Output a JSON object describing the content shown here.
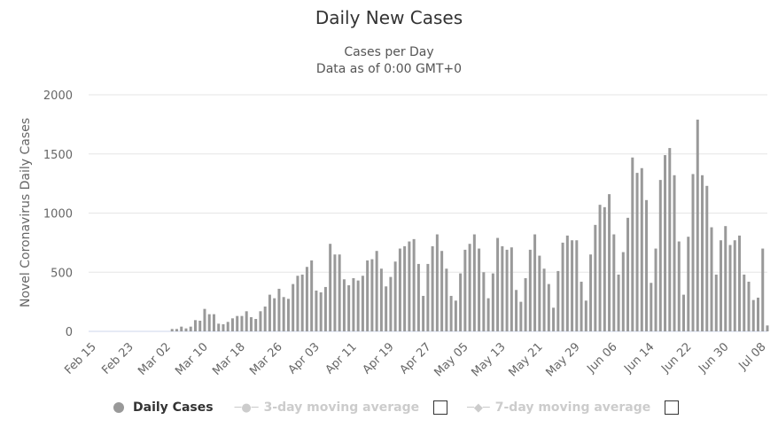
{
  "chart_data": {
    "type": "bar",
    "title": "Daily New Cases",
    "subtitle": "Cases per Day",
    "subtitle2": "Data as of 0:00 GMT+0",
    "xlabel": "",
    "ylabel": "Novel Coronavirus Daily Cases",
    "ylim": [
      0,
      2000
    ],
    "yticks": [
      0,
      500,
      1000,
      1500,
      2000
    ],
    "grid": true,
    "legend_position": "bottom",
    "bar_color": "#999999",
    "categories": [
      "Feb 15",
      "Feb 16",
      "Feb 17",
      "Feb 18",
      "Feb 19",
      "Feb 20",
      "Feb 21",
      "Feb 22",
      "Feb 23",
      "Feb 24",
      "Feb 25",
      "Feb 26",
      "Feb 27",
      "Feb 28",
      "Feb 29",
      "Mar 01",
      "Mar 02",
      "Mar 03",
      "Mar 04",
      "Mar 05",
      "Mar 06",
      "Mar 07",
      "Mar 08",
      "Mar 09",
      "Mar 10",
      "Mar 11",
      "Mar 12",
      "Mar 13",
      "Mar 14",
      "Mar 15",
      "Mar 16",
      "Mar 17",
      "Mar 18",
      "Mar 19",
      "Mar 20",
      "Mar 21",
      "Mar 22",
      "Mar 23",
      "Mar 24",
      "Mar 25",
      "Mar 26",
      "Mar 27",
      "Mar 28",
      "Mar 29",
      "Mar 30",
      "Mar 31",
      "Apr 01",
      "Apr 02",
      "Apr 03",
      "Apr 04",
      "Apr 05",
      "Apr 06",
      "Apr 07",
      "Apr 08",
      "Apr 09",
      "Apr 10",
      "Apr 11",
      "Apr 12",
      "Apr 13",
      "Apr 14",
      "Apr 15",
      "Apr 16",
      "Apr 17",
      "Apr 18",
      "Apr 19",
      "Apr 20",
      "Apr 21",
      "Apr 22",
      "Apr 23",
      "Apr 24",
      "Apr 25",
      "Apr 26",
      "Apr 27",
      "Apr 28",
      "Apr 29",
      "Apr 30",
      "May 01",
      "May 02",
      "May 03",
      "May 04",
      "May 05",
      "May 06",
      "May 07",
      "May 08",
      "May 09",
      "May 10",
      "May 11",
      "May 12",
      "May 13",
      "May 14",
      "May 15",
      "May 16",
      "May 17",
      "May 18",
      "May 19",
      "May 20",
      "May 21",
      "May 22",
      "May 23",
      "May 24",
      "May 25",
      "May 26",
      "May 27",
      "May 28",
      "May 29",
      "May 30",
      "May 31",
      "Jun 01",
      "Jun 02",
      "Jun 03",
      "Jun 04",
      "Jun 05",
      "Jun 06",
      "Jun 07",
      "Jun 08",
      "Jun 09",
      "Jun 10",
      "Jun 11",
      "Jun 12",
      "Jun 13",
      "Jun 14",
      "Jun 15",
      "Jun 16",
      "Jun 17",
      "Jun 18",
      "Jun 19",
      "Jun 20",
      "Jun 21",
      "Jun 22",
      "Jun 23",
      "Jun 24",
      "Jun 25",
      "Jun 26",
      "Jun 27",
      "Jun 28",
      "Jun 29",
      "Jun 30",
      "Jul 01",
      "Jul 02",
      "Jul 03",
      "Jul 04",
      "Jul 05",
      "Jul 06",
      "Jul 07",
      "Jul 08",
      "Jul 09"
    ],
    "xticks": [
      "Feb 15",
      "Feb 23",
      "Mar 02",
      "Mar 10",
      "Mar 18",
      "Mar 26",
      "Apr 03",
      "Apr 11",
      "Apr 19",
      "Apr 27",
      "May 05",
      "May 13",
      "May 21",
      "May 29",
      "Jun 06",
      "Jun 14",
      "Jun 22",
      "Jun 30",
      "Jul 08"
    ],
    "series": [
      {
        "name": "Daily Cases",
        "values": [
          0,
          0,
          0,
          0,
          0,
          0,
          0,
          0,
          0,
          0,
          0,
          0,
          0,
          0,
          0,
          0,
          0,
          20,
          20,
          40,
          25,
          40,
          95,
          90,
          190,
          145,
          145,
          65,
          60,
          80,
          110,
          130,
          130,
          170,
          120,
          105,
          170,
          210,
          310,
          280,
          360,
          290,
          275,
          400,
          470,
          480,
          545,
          600,
          345,
          330,
          375,
          740,
          650,
          650,
          440,
          390,
          450,
          430,
          470,
          600,
          610,
          680,
          530,
          380,
          460,
          590,
          700,
          720,
          760,
          780,
          570,
          300,
          570,
          720,
          820,
          680,
          530,
          300,
          260,
          490,
          690,
          740,
          820,
          700,
          500,
          280,
          490,
          790,
          720,
          690,
          710,
          350,
          250,
          450,
          690,
          820,
          640,
          530,
          400,
          200,
          510,
          750,
          810,
          770,
          770,
          420,
          260,
          650,
          900,
          1070,
          1050,
          1160,
          820,
          480,
          670,
          960,
          1470,
          1340,
          1380,
          1110,
          410,
          700,
          1280,
          1490,
          1550,
          1320,
          760,
          310,
          800,
          1330,
          1790,
          1320,
          1230,
          880,
          480,
          770,
          890,
          730,
          770,
          810,
          480,
          420,
          265,
          285,
          700,
          50
        ]
      }
    ]
  },
  "legend": {
    "items": [
      {
        "label": "Daily Cases",
        "color": "#999999",
        "active": true
      },
      {
        "label": "3-day moving average",
        "color": "#cccccc",
        "active": false
      },
      {
        "label": "7-day moving average",
        "color": "#cccccc",
        "active": false
      }
    ]
  }
}
